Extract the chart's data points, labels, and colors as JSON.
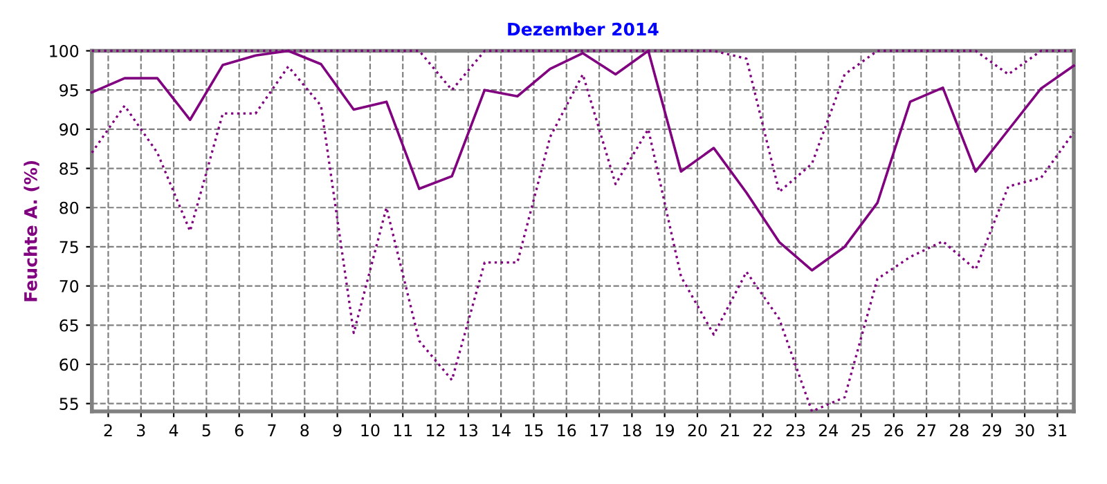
{
  "chart_data": {
    "type": "line",
    "title": "Dezember 2014",
    "ylabel": "Feuchte A. (%)",
    "x": [
      1.5,
      2.5,
      3.5,
      4.5,
      5.5,
      6.5,
      7.5,
      8.5,
      9.5,
      10.5,
      11.5,
      12.5,
      13.5,
      14.5,
      15.5,
      16.5,
      17.5,
      18.5,
      19.5,
      20.5,
      21.5,
      22.5,
      23.5,
      24.5,
      25.5,
      26.5,
      27.5,
      28.5,
      29.5,
      30.5,
      31.5
    ],
    "series": [
      {
        "color": "#800080",
        "line_style": "dotted",
        "values": [
          100,
          100,
          100,
          100,
          100,
          100,
          100,
          100,
          100,
          100,
          100,
          95,
          100,
          100,
          100,
          100,
          100,
          100,
          100,
          100,
          99,
          82,
          85.6,
          97,
          100,
          100,
          100,
          100,
          97,
          100,
          100
        ]
      },
      {
        "color": "#800080",
        "line_style": "solid",
        "values": [
          94.7,
          96.5,
          96.5,
          91.2,
          98.2,
          99.4,
          100,
          98.3,
          92.5,
          93.5,
          82.4,
          84,
          95,
          94.2,
          97.7,
          99.7,
          97,
          100,
          84.6,
          87.6,
          81.9,
          75.6,
          72,
          75,
          80.6,
          93.5,
          95.3,
          84.6,
          89.9,
          95.2,
          98.1
        ]
      },
      {
        "color": "#800080",
        "line_style": "dotted",
        "values": [
          87,
          93,
          87,
          77,
          92,
          92,
          98,
          93,
          64,
          80,
          63,
          58,
          73,
          73,
          89,
          97,
          83,
          90,
          71.2,
          63.8,
          71.8,
          65.8,
          54,
          55.8,
          70.9,
          73.7,
          75.7,
          72.1,
          82.7,
          83.8,
          89.6
        ]
      }
    ],
    "xlim": [
      1.5,
      31.5
    ],
    "xticks": [
      2,
      3,
      4,
      5,
      6,
      7,
      8,
      9,
      10,
      11,
      12,
      13,
      14,
      15,
      16,
      17,
      18,
      19,
      20,
      21,
      22,
      23,
      24,
      25,
      26,
      27,
      28,
      29,
      30,
      31
    ],
    "ylim": [
      54,
      100
    ],
    "yticks": [
      55,
      60,
      65,
      70,
      75,
      80,
      85,
      90,
      95,
      100
    ],
    "grid": true,
    "marker": "none"
  }
}
